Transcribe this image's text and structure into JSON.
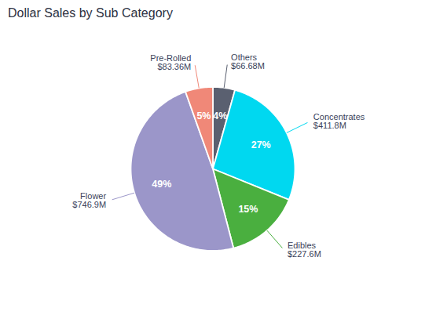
{
  "chart_data": {
    "type": "pie",
    "title": "Dollar Sales by Sub Category",
    "categories": [
      "Others",
      "Concentrates",
      "Edibles",
      "Flower",
      "Pre-Rolled"
    ],
    "values": [
      66.68,
      411.8,
      227.6,
      746.9,
      83.36
    ],
    "value_labels": [
      "$66.68M",
      "$411.8M",
      "$227.6M",
      "$746.9M",
      "$83.36M"
    ],
    "percents": [
      4,
      27,
      15,
      49,
      5
    ],
    "percent_labels": [
      "4%",
      "27%",
      "15%",
      "49%",
      "5%"
    ],
    "colors": [
      "#5a6070",
      "#00d8f0",
      "#4aaf3f",
      "#9b96c9",
      "#f08878"
    ],
    "data_labels": true
  }
}
